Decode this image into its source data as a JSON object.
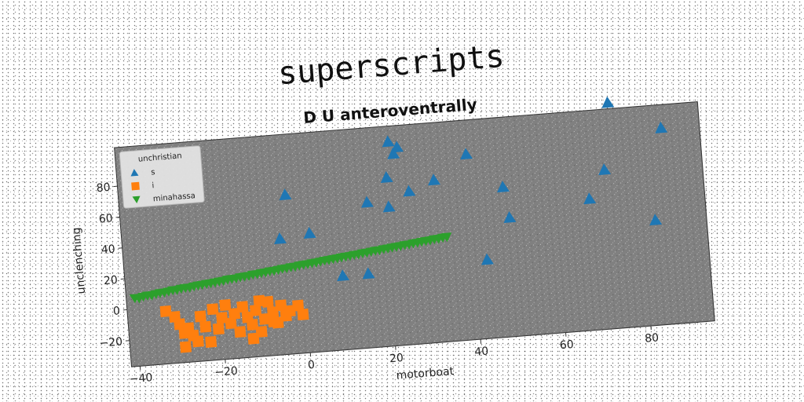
{
  "chart_data": {
    "type": "scatter",
    "title": "superscripts",
    "subtitle": "D U anteroventrally",
    "xlabel": "motorboat",
    "ylabel": "unclenching",
    "xlim": [
      -42,
      95
    ],
    "ylim": [
      -37,
      105
    ],
    "xticks": [
      -40,
      -20,
      0,
      20,
      40,
      60,
      80
    ],
    "yticks": [
      -20,
      0,
      20,
      40,
      60,
      80
    ],
    "grid": false,
    "plot_background": "#808080",
    "legend": {
      "title": "unchristian",
      "placement": "top-left"
    },
    "series": [
      {
        "name": "s",
        "marker": "triangle-up",
        "color": "#1f77b4",
        "points": [
          [
            22,
            95
          ],
          [
            23,
            87
          ],
          [
            24,
            91
          ],
          [
            21,
            72
          ],
          [
            26,
            62
          ],
          [
            32,
            68
          ],
          [
            16,
            57
          ],
          [
            21,
            53
          ],
          [
            -3,
            66
          ],
          [
            -5,
            38
          ],
          [
            2,
            40
          ],
          [
            9,
            11
          ],
          [
            15,
            11
          ],
          [
            40,
            83
          ],
          [
            48,
            60
          ],
          [
            49,
            40
          ],
          [
            43,
            14
          ],
          [
            68,
            48
          ],
          [
            72,
            66
          ],
          [
            74,
            109
          ],
          [
            83,
            31
          ],
          [
            86,
            90
          ]
        ]
      },
      {
        "name": "i",
        "marker": "square",
        "color": "#ff7f0e",
        "points": [
          [
            -33,
            -3
          ],
          [
            -31,
            -7
          ],
          [
            -30,
            -12
          ],
          [
            -29,
            -18
          ],
          [
            -28,
            -15
          ],
          [
            -27,
            -20
          ],
          [
            -26,
            -24
          ],
          [
            -29,
            -27
          ],
          [
            -23,
            -25
          ],
          [
            -24,
            -15
          ],
          [
            -21,
            -17
          ],
          [
            -20,
            -10
          ],
          [
            -18,
            -14
          ],
          [
            -17,
            -8
          ],
          [
            -16,
            -20
          ],
          [
            -15,
            -4
          ],
          [
            -14,
            -11
          ],
          [
            -13,
            -16
          ],
          [
            -12,
            -7
          ],
          [
            -11,
            -21
          ],
          [
            -10,
            -13
          ],
          [
            -9,
            -2
          ],
          [
            -8,
            -9
          ],
          [
            -7,
            -16
          ],
          [
            -6,
            -5
          ],
          [
            -5,
            -12
          ],
          [
            -4,
            -9
          ],
          [
            -2,
            -6
          ],
          [
            -1,
            -12
          ],
          [
            -22,
            -4
          ],
          [
            -19,
            -2
          ],
          [
            -25,
            -8
          ],
          [
            -13,
            -25
          ],
          [
            -11,
            -1
          ],
          [
            -8,
            -15
          ]
        ]
      },
      {
        "name": "minahassa",
        "marker": "triangle-down",
        "color": "#2ca02c",
        "points": [
          [
            -40,
            7.0
          ],
          [
            -39,
            6.7
          ],
          [
            -38,
            7.6
          ],
          [
            -37,
            8.1
          ],
          [
            -36,
            7.9
          ],
          [
            -35,
            8.6
          ],
          [
            -34,
            9.1
          ],
          [
            -33,
            9.2
          ],
          [
            -32,
            9.6
          ],
          [
            -31,
            10.2
          ],
          [
            -30,
            10.2
          ],
          [
            -29,
            10.8
          ],
          [
            -28,
            11.1
          ],
          [
            -27,
            11.0
          ],
          [
            -26,
            11.6
          ],
          [
            -25,
            12.0
          ],
          [
            -24,
            12.2
          ],
          [
            -23,
            12.6
          ],
          [
            -22,
            12.8
          ],
          [
            -21,
            13.1
          ],
          [
            -20,
            13.5
          ],
          [
            -19,
            13.7
          ],
          [
            -18,
            14.3
          ],
          [
            -17,
            14.5
          ],
          [
            -16,
            14.6
          ],
          [
            -15,
            15.2
          ],
          [
            -14,
            15.4
          ],
          [
            -13,
            15.6
          ],
          [
            -12,
            16.2
          ],
          [
            -11,
            16.3
          ],
          [
            -10,
            16.8
          ],
          [
            -9,
            17.0
          ],
          [
            -8,
            17.5
          ],
          [
            -7,
            17.6
          ],
          [
            -6,
            18.0
          ],
          [
            -5,
            18.5
          ],
          [
            -4,
            18.6
          ],
          [
            -3,
            19.1
          ],
          [
            -2,
            19.2
          ],
          [
            -1,
            19.7
          ],
          [
            0,
            20.0
          ],
          [
            1,
            20.2
          ],
          [
            2,
            20.6
          ],
          [
            3,
            20.8
          ],
          [
            4,
            21.2
          ],
          [
            5,
            21.6
          ],
          [
            6,
            21.8
          ],
          [
            7,
            22.2
          ],
          [
            8,
            22.4
          ],
          [
            9,
            22.8
          ],
          [
            10,
            23.1
          ],
          [
            11,
            23.3
          ],
          [
            12,
            23.8
          ],
          [
            13,
            23.9
          ],
          [
            14,
            24.4
          ],
          [
            15,
            24.6
          ],
          [
            16,
            25.0
          ],
          [
            17,
            25.4
          ],
          [
            18,
            25.5
          ],
          [
            19,
            26.0
          ],
          [
            20,
            26.2
          ],
          [
            21,
            26.6
          ],
          [
            22,
            26.9
          ],
          [
            23,
            27.1
          ],
          [
            24,
            27.6
          ],
          [
            25,
            27.7
          ],
          [
            26,
            28.2
          ],
          [
            27,
            28.4
          ],
          [
            28,
            28.8
          ],
          [
            29,
            29.1
          ],
          [
            30,
            29.3
          ],
          [
            31,
            29.8
          ],
          [
            32,
            29.9
          ],
          [
            33,
            30.4
          ],
          [
            34,
            30.6
          ]
        ]
      }
    ]
  }
}
